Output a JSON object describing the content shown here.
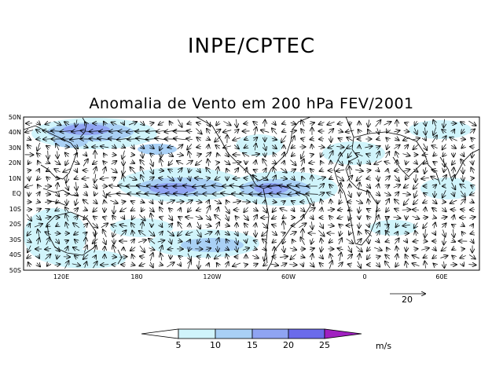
{
  "header": {
    "title": "INPE/CPTEC",
    "subtitle": "Anomalia de Vento em 200 hPa FEV/2001"
  },
  "map": {
    "lat_labels": [
      "50N",
      "40N",
      "30N",
      "20N",
      "10N",
      "EQ",
      "10S",
      "20S",
      "30S",
      "40S",
      "50S"
    ],
    "lon_labels": [
      "120E",
      "180",
      "120W",
      "60W",
      "0",
      "60E"
    ],
    "reference_vector": {
      "label": "20",
      "value": 20
    }
  },
  "colorbar": {
    "ticks": [
      "5",
      "10",
      "15",
      "20",
      "25"
    ],
    "units": "m/s",
    "colors": [
      "#ffffff",
      "#d0f4fb",
      "#a9d0f5",
      "#8fa4f2",
      "#6b6bea",
      "#a020c0"
    ]
  }
}
